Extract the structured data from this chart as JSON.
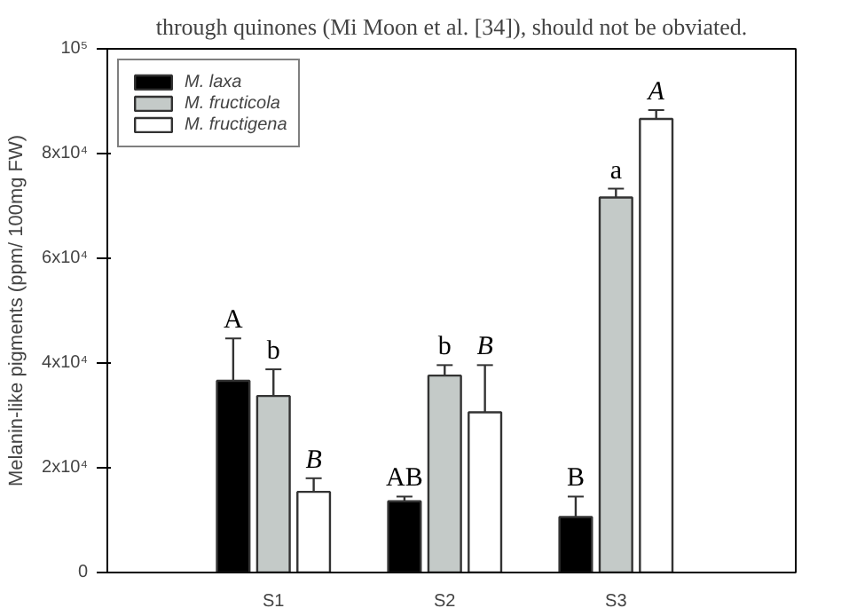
{
  "chart_data": {
    "type": "bar",
    "ylabel": "Melanin-like pigments (ppm/ 100mg FW)",
    "annotations": [
      "through quinones (Mi Moon et al. [34]), should not be obviated."
    ],
    "categories": [
      "S1",
      "S2",
      "S3"
    ],
    "series": [
      {
        "name": "M. laxa",
        "color": "#000000",
        "values": [
          36600,
          13600,
          10600
        ],
        "errors": [
          [
            36600,
            44700
          ],
          [
            13600,
            14500
          ],
          [
            10600,
            14500
          ]
        ],
        "value_labels": [
          "A",
          "AB",
          "B"
        ]
      },
      {
        "name": "M. fructicola",
        "color": "#c4cac8",
        "values": [
          33700,
          37600,
          71600
        ],
        "errors": [
          [
            33700,
            38800
          ],
          [
            37600,
            39600
          ],
          [
            71600,
            73300
          ]
        ],
        "value_labels": [
          "b",
          "b",
          "a"
        ]
      },
      {
        "name": "M. fructigena",
        "color": "#ffffff",
        "values": [
          15400,
          30600,
          86600
        ],
        "errors": [
          [
            15400,
            18000
          ],
          [
            30600,
            39600
          ],
          [
            86600,
            88300
          ]
        ],
        "value_labels": [
          "B",
          "B",
          "A"
        ]
      }
    ],
    "ylim": [
      0,
      100000
    ],
    "yticks": [
      {
        "value": 0,
        "label": "0"
      },
      {
        "value": 20000,
        "label": "2x10⁴"
      },
      {
        "value": 40000,
        "label": "4x10⁴"
      },
      {
        "value": 60000,
        "label": "6x10⁴"
      },
      {
        "value": 80000,
        "label": "8x10⁴"
      },
      {
        "value": 100000,
        "label": "10⁵"
      }
    ],
    "grid": false,
    "legend": "top left"
  }
}
